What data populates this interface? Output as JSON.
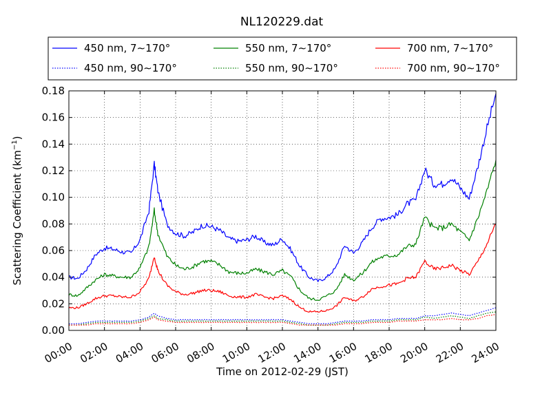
{
  "chart_data": {
    "type": "line",
    "title": "NL120229.dat",
    "xlabel": "Time on 2012-02-29 (JST)",
    "ylabel": "Scattering Coefficient (km",
    "ylabel_sup": "−1",
    "ylabel_end": ")",
    "xlim": [
      0,
      24
    ],
    "ylim": [
      0,
      0.18
    ],
    "x_ticks": [
      0,
      2,
      4,
      6,
      8,
      10,
      12,
      14,
      16,
      18,
      20,
      22,
      24
    ],
    "x_tick_labels": [
      "00:00",
      "02:00",
      "04:00",
      "06:00",
      "08:00",
      "10:00",
      "12:00",
      "14:00",
      "16:00",
      "18:00",
      "20:00",
      "22:00",
      "24:00"
    ],
    "y_ticks": [
      0,
      0.02,
      0.04,
      0.06,
      0.08,
      0.1,
      0.12,
      0.14,
      0.16,
      0.18
    ],
    "y_tick_labels": [
      "0.00",
      "0.02",
      "0.04",
      "0.06",
      "0.08",
      "0.10",
      "0.12",
      "0.14",
      "0.16",
      "0.18"
    ],
    "grid": true,
    "legend_position": "top, above plot (3 columns)",
    "x": [
      0,
      0.5,
      1,
      1.5,
      2,
      2.5,
      3,
      3.5,
      4,
      4.5,
      4.8,
      5,
      5.5,
      6,
      6.5,
      7,
      7.5,
      8,
      8.5,
      9,
      9.5,
      10,
      10.5,
      11,
      11.5,
      12,
      12.5,
      13,
      13.5,
      14,
      14.5,
      15,
      15.5,
      16,
      16.5,
      17,
      17.5,
      18,
      18.5,
      19,
      19.5,
      20,
      20.5,
      21,
      21.5,
      22,
      22.5,
      23,
      23.5,
      24
    ],
    "series": [
      {
        "name": "450 nm, 7∼170°",
        "color": "#0000ff",
        "style": "solid",
        "values": [
          0.04,
          0.039,
          0.046,
          0.057,
          0.062,
          0.061,
          0.059,
          0.058,
          0.068,
          0.09,
          0.125,
          0.105,
          0.08,
          0.073,
          0.071,
          0.074,
          0.079,
          0.078,
          0.075,
          0.069,
          0.067,
          0.068,
          0.071,
          0.066,
          0.064,
          0.069,
          0.06,
          0.048,
          0.04,
          0.037,
          0.04,
          0.047,
          0.064,
          0.058,
          0.066,
          0.077,
          0.084,
          0.085,
          0.087,
          0.095,
          0.098,
          0.121,
          0.11,
          0.11,
          0.115,
          0.107,
          0.099,
          0.124,
          0.152,
          0.178
        ]
      },
      {
        "name": "550 nm, 7∼170°",
        "color": "#008000",
        "style": "solid",
        "values": [
          0.027,
          0.026,
          0.032,
          0.038,
          0.042,
          0.041,
          0.04,
          0.04,
          0.047,
          0.063,
          0.09,
          0.073,
          0.056,
          0.049,
          0.046,
          0.048,
          0.052,
          0.052,
          0.049,
          0.044,
          0.043,
          0.043,
          0.046,
          0.044,
          0.042,
          0.045,
          0.04,
          0.03,
          0.024,
          0.023,
          0.026,
          0.03,
          0.042,
          0.038,
          0.043,
          0.051,
          0.055,
          0.056,
          0.057,
          0.063,
          0.065,
          0.085,
          0.077,
          0.077,
          0.08,
          0.074,
          0.068,
          0.085,
          0.105,
          0.128
        ]
      },
      {
        "name": "700 nm, 7∼170°",
        "color": "#ff0000",
        "style": "solid",
        "values": [
          0.017,
          0.017,
          0.02,
          0.024,
          0.026,
          0.026,
          0.025,
          0.025,
          0.029,
          0.039,
          0.056,
          0.045,
          0.034,
          0.029,
          0.027,
          0.028,
          0.03,
          0.03,
          0.029,
          0.026,
          0.025,
          0.025,
          0.027,
          0.025,
          0.024,
          0.026,
          0.023,
          0.017,
          0.014,
          0.014,
          0.015,
          0.018,
          0.025,
          0.022,
          0.025,
          0.031,
          0.033,
          0.034,
          0.035,
          0.039,
          0.04,
          0.052,
          0.046,
          0.047,
          0.049,
          0.045,
          0.042,
          0.052,
          0.065,
          0.08
        ]
      },
      {
        "name": "450 nm, 90∼170°",
        "color": "#0000ff",
        "style": "dotted",
        "values": [
          0.005,
          0.005,
          0.006,
          0.007,
          0.007,
          0.007,
          0.007,
          0.007,
          0.008,
          0.01,
          0.013,
          0.011,
          0.009,
          0.008,
          0.008,
          0.008,
          0.008,
          0.008,
          0.008,
          0.008,
          0.008,
          0.008,
          0.008,
          0.008,
          0.008,
          0.008,
          0.007,
          0.006,
          0.005,
          0.005,
          0.005,
          0.006,
          0.007,
          0.007,
          0.007,
          0.008,
          0.008,
          0.008,
          0.009,
          0.009,
          0.009,
          0.011,
          0.011,
          0.012,
          0.013,
          0.012,
          0.011,
          0.013,
          0.015,
          0.017
        ]
      },
      {
        "name": "550 nm, 90∼170°",
        "color": "#008000",
        "style": "dotted",
        "values": [
          0.004,
          0.004,
          0.005,
          0.006,
          0.006,
          0.006,
          0.006,
          0.006,
          0.007,
          0.009,
          0.011,
          0.009,
          0.008,
          0.007,
          0.007,
          0.007,
          0.007,
          0.007,
          0.007,
          0.007,
          0.007,
          0.007,
          0.007,
          0.007,
          0.007,
          0.007,
          0.006,
          0.005,
          0.004,
          0.004,
          0.004,
          0.005,
          0.006,
          0.006,
          0.006,
          0.007,
          0.007,
          0.007,
          0.008,
          0.008,
          0.008,
          0.01,
          0.009,
          0.01,
          0.011,
          0.01,
          0.009,
          0.011,
          0.013,
          0.014
        ]
      },
      {
        "name": "700 nm, 90∼170°",
        "color": "#ff0000",
        "style": "dotted",
        "values": [
          0.004,
          0.004,
          0.004,
          0.005,
          0.005,
          0.005,
          0.005,
          0.005,
          0.006,
          0.008,
          0.01,
          0.008,
          0.007,
          0.006,
          0.006,
          0.006,
          0.006,
          0.006,
          0.006,
          0.006,
          0.006,
          0.006,
          0.006,
          0.006,
          0.006,
          0.006,
          0.005,
          0.004,
          0.004,
          0.004,
          0.004,
          0.004,
          0.005,
          0.005,
          0.005,
          0.006,
          0.006,
          0.006,
          0.007,
          0.007,
          0.007,
          0.008,
          0.008,
          0.008,
          0.009,
          0.008,
          0.008,
          0.009,
          0.011,
          0.012
        ]
      }
    ]
  }
}
